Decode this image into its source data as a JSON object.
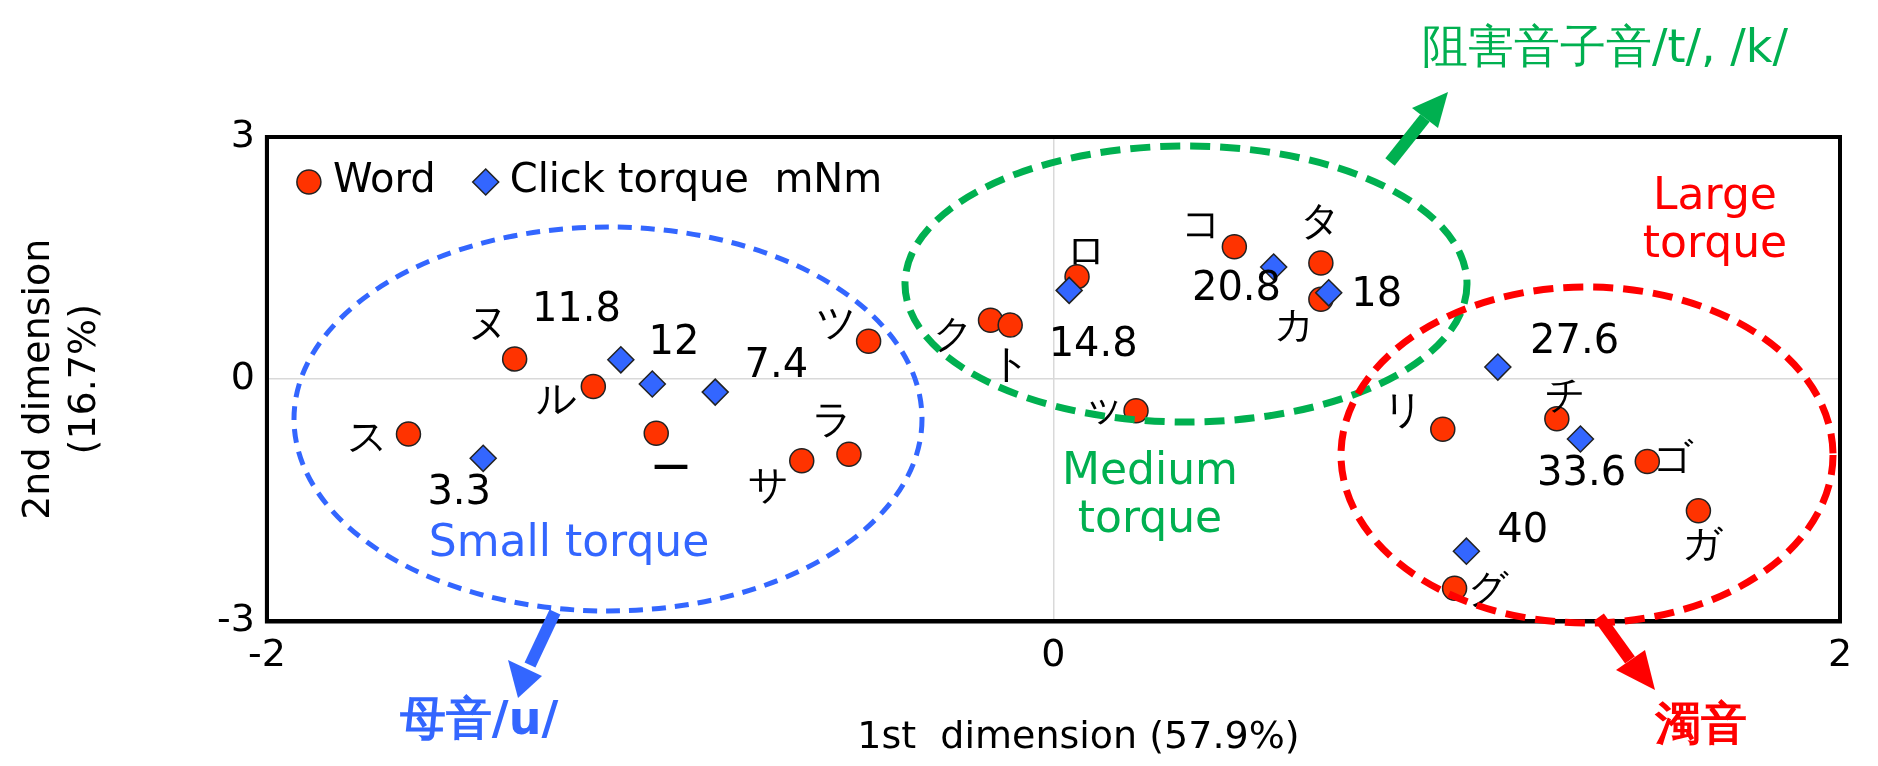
{
  "chart_data": {
    "type": "scatter",
    "xlabel": "1st  dimension (57.9%)",
    "ylabel": "2nd dimension (16.7%)",
    "xlim": [
      -2,
      2
    ],
    "xticks": [
      -2,
      0,
      2
    ],
    "ylim": [
      -3,
      3
    ],
    "yticks": [
      -3,
      0,
      3
    ],
    "grid": true,
    "legend": "top left",
    "series": [
      {
        "name": "Word",
        "type": "scatter",
        "marker": "circle",
        "color": "#ff3300",
        "x": [
          -1.64,
          -1.37,
          -1.17,
          -1.01,
          -0.52,
          -0.64,
          -0.47,
          -0.16,
          -0.11,
          0.06,
          0.21,
          0.46,
          0.68,
          0.68,
          0.99,
          1.28,
          1.51,
          1.64,
          1.02
        ],
        "values": [
          -0.68,
          0.25,
          -0.09,
          -0.67,
          -0.93,
          -1.01,
          0.47,
          0.73,
          0.67,
          1.27,
          -0.39,
          1.64,
          1.44,
          0.99,
          -0.62,
          -0.49,
          -1.02,
          -1.63,
          -2.59
        ]
      },
      {
        "name": "Click torque  mNm",
        "type": "scatter",
        "marker": "diamond",
        "color": "#3366ff",
        "x": [
          -1.1,
          -1.02,
          -0.86,
          -1.45,
          0.04,
          0.56,
          0.7,
          1.13,
          1.34,
          1.05
        ],
        "values": [
          0.24,
          -0.06,
          -0.16,
          -0.98,
          1.1,
          1.39,
          1.07,
          0.15,
          -0.74,
          -2.13
        ]
      }
    ],
    "annotations": [
      {
        "text": "ス",
        "x": -1.64,
        "y": -0.68
      },
      {
        "text": "ヌ",
        "x": -1.37,
        "y": 0.25
      },
      {
        "text": "ル",
        "x": -1.17,
        "y": -0.09
      },
      {
        "text": "ー",
        "x": -1.01,
        "y": -0.67
      },
      {
        "text": "ラ",
        "x": -0.52,
        "y": -0.93
      },
      {
        "text": "サ",
        "x": -0.64,
        "y": -1.01
      },
      {
        "text": "ツ",
        "x": -0.47,
        "y": 0.47
      },
      {
        "text": "ク",
        "x": -0.16,
        "y": 0.73
      },
      {
        "text": "ト",
        "x": -0.11,
        "y": 0.67
      },
      {
        "text": "ロ",
        "x": 0.06,
        "y": 1.27
      },
      {
        "text": "ッ",
        "x": 0.21,
        "y": -0.39
      },
      {
        "text": "コ",
        "x": 0.46,
        "y": 1.64
      },
      {
        "text": "タ",
        "x": 0.68,
        "y": 1.44
      },
      {
        "text": "カ",
        "x": 0.68,
        "y": 0.99
      },
      {
        "text": "リ",
        "x": 0.99,
        "y": -0.62
      },
      {
        "text": "チ",
        "x": 1.28,
        "y": -0.49
      },
      {
        "text": "ゴ",
        "x": 1.51,
        "y": -1.02
      },
      {
        "text": "ガ",
        "x": 1.64,
        "y": -1.63
      },
      {
        "text": "グ",
        "x": 1.02,
        "y": -2.59
      },
      {
        "text": "11.8",
        "x": -1.1,
        "y": 0.24
      },
      {
        "text": "12",
        "x": -1.02,
        "y": -0.06
      },
      {
        "text": "7.4",
        "x": -0.86,
        "y": -0.16
      },
      {
        "text": "3.3",
        "x": -1.45,
        "y": -0.98
      },
      {
        "text": "14.8",
        "x": 0.04,
        "y": 1.1
      },
      {
        "text": "20.8",
        "x": 0.56,
        "y": 1.39
      },
      {
        "text": "18",
        "x": 0.7,
        "y": 1.07
      },
      {
        "text": "27.6",
        "x": 1.13,
        "y": 0.15
      },
      {
        "text": "33.6",
        "x": 1.34,
        "y": -0.74
      },
      {
        "text": "40",
        "x": 1.05,
        "y": -2.13
      },
      "Small torque",
      "Medium torque",
      "Large torque",
      "母音/u/",
      "阻害音子音/t/, /k/",
      "濁音"
    ]
  }
}
